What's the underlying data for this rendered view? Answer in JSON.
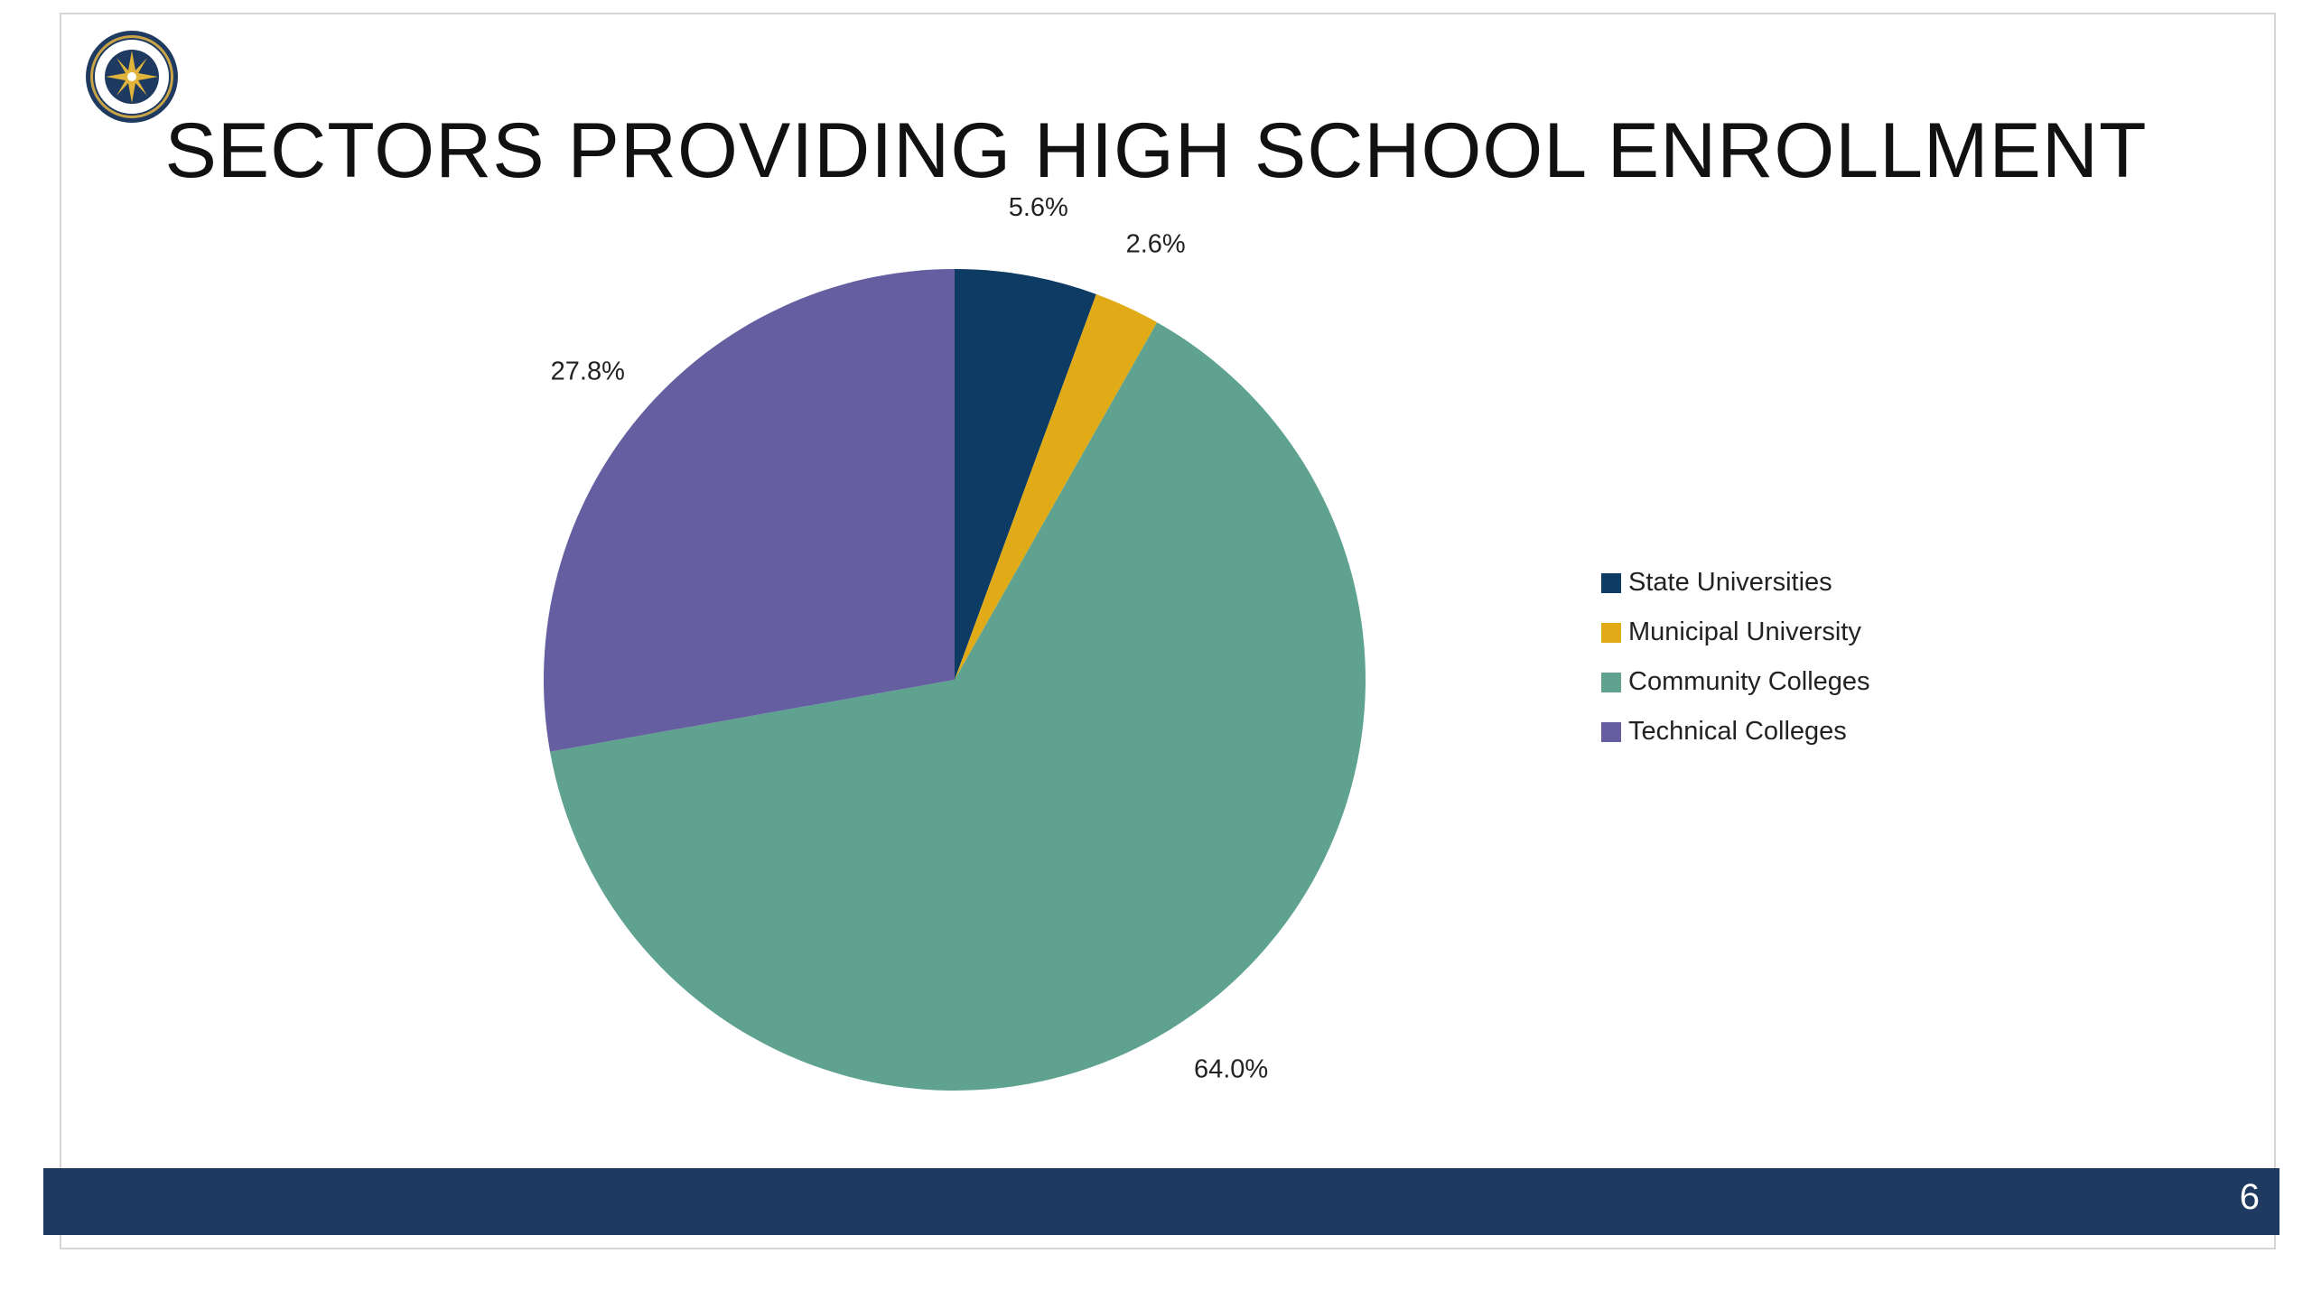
{
  "slide": {
    "title": "SECTORS PROVIDING HIGH SCHOOL ENROLLMENT",
    "page_number": "6",
    "logo_icon": "state-seal-icon",
    "footer_color": "#1f3a60"
  },
  "chart_data": {
    "type": "pie",
    "title": "",
    "start_angle_deg": 0,
    "direction": "clockwise",
    "legend_position": "right",
    "slices": [
      {
        "name": "State Universities",
        "value": 5.6,
        "label": "5.6%",
        "color": "#0d3b63"
      },
      {
        "name": "Municipal University",
        "value": 2.6,
        "label": "2.6%",
        "color": "#e0ab17"
      },
      {
        "name": "Community Colleges",
        "value": 64.0,
        "label": "64.0%",
        "color": "#5ea28f"
      },
      {
        "name": "Technical Colleges",
        "value": 27.8,
        "label": "27.8%",
        "color": "#655ea1"
      }
    ]
  }
}
